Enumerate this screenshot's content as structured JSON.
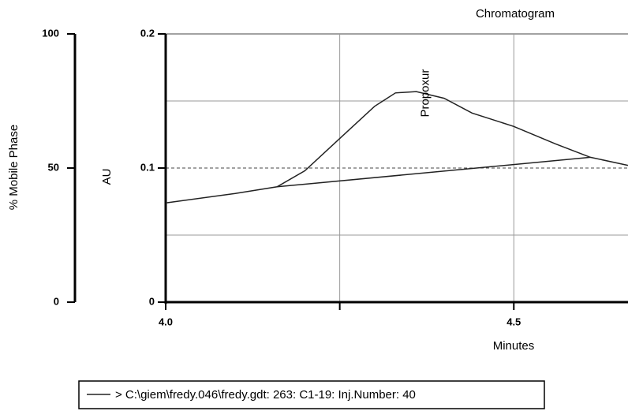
{
  "chart_data": {
    "type": "line",
    "title": "Chromatogram",
    "xlabel": "Minutes",
    "ylabel": "AU",
    "y2label": "% Mobile Phase",
    "annotations": [
      {
        "text": "Propoxur",
        "x": 4.36,
        "y": 0.157
      }
    ],
    "xlim": [
      4.0,
      4.664
    ],
    "xticks": [
      {
        "value": 4.0,
        "label": "4.0"
      },
      {
        "value": 4.5,
        "label": "4.5"
      }
    ],
    "xminor": [
      4.25
    ],
    "ylim": [
      0,
      0.2
    ],
    "yticks": [
      0,
      0.1,
      0.2
    ],
    "yminor": [
      0.05,
      0.15
    ],
    "y2lim": [
      0,
      100
    ],
    "y2ticks": [
      0,
      50,
      100
    ],
    "grid": true,
    "series": [
      {
        "name": "> C:\\giem\\fredy.046\\fredy.gdt: 263: C1-19: Inj.Number: 40",
        "color": "#222222",
        "x": [
          4.0,
          4.1,
          4.16,
          4.2,
          4.25,
          4.3,
          4.33,
          4.36,
          4.4,
          4.44,
          4.5,
          4.56,
          4.61,
          4.664
        ],
        "values": [
          0.074,
          0.081,
          0.086,
          0.098,
          0.122,
          0.146,
          0.156,
          0.157,
          0.152,
          0.141,
          0.131,
          0.118,
          0.108,
          0.102
        ]
      },
      {
        "name": "Baseline",
        "color": "#222222",
        "legend": false,
        "x": [
          4.16,
          4.61
        ],
        "values": [
          0.086,
          0.108
        ]
      }
    ]
  }
}
